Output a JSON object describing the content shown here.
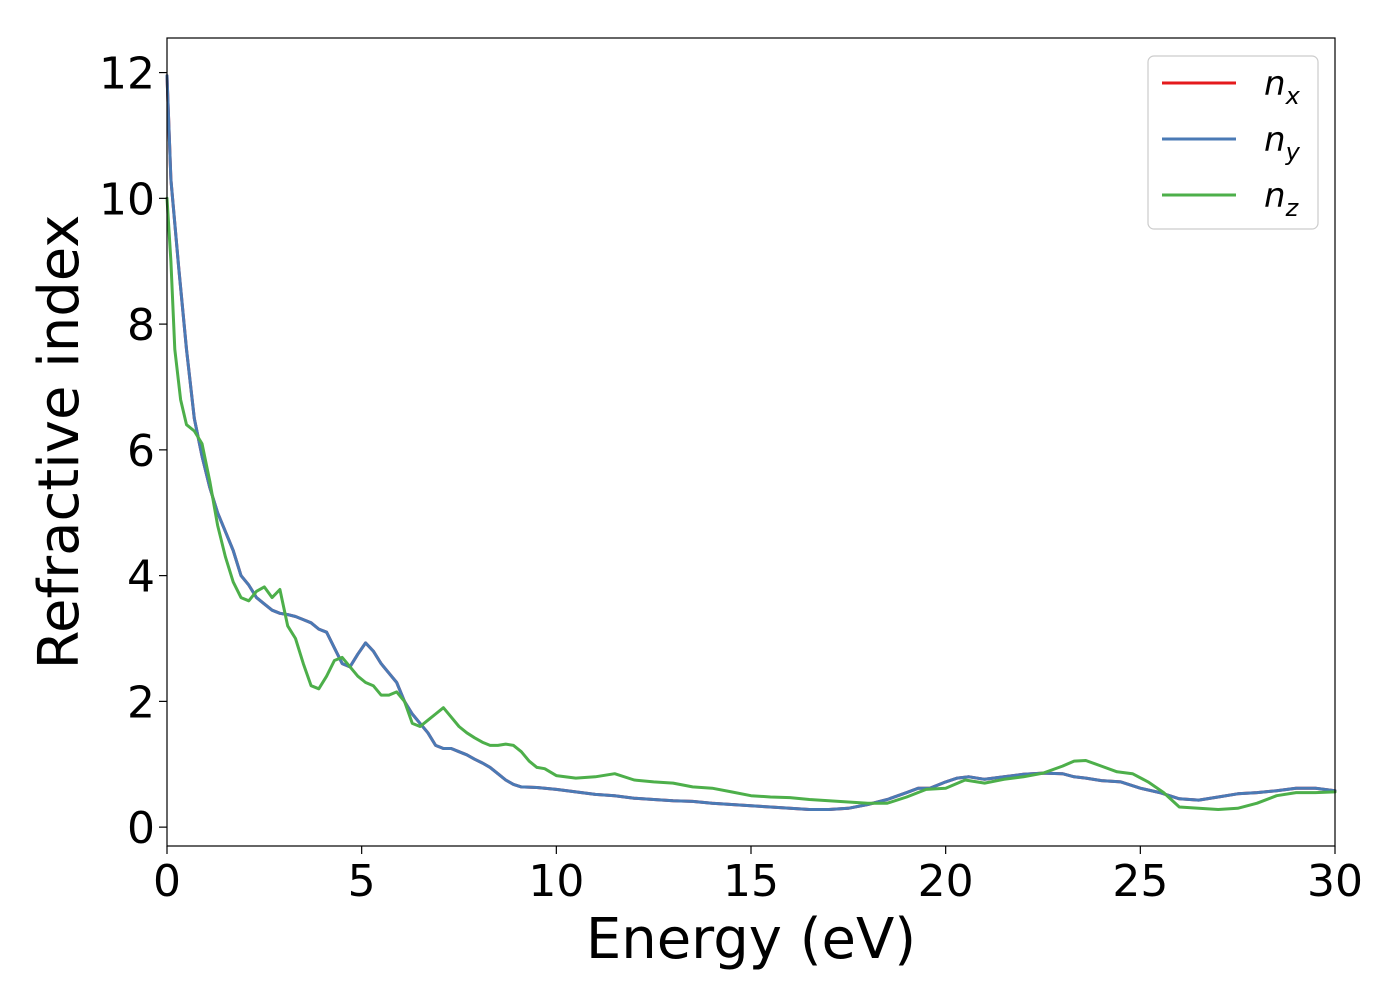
{
  "chart_data": {
    "type": "line",
    "title": "",
    "xlabel": "Energy (eV)",
    "ylabel": "Refractive index",
    "xlim": [
      0,
      30
    ],
    "ylim": [
      -0.3,
      12.55
    ],
    "xticks": [
      0,
      5,
      10,
      15,
      20,
      25,
      30
    ],
    "xtick_labels": [
      "0",
      "5",
      "10",
      "15",
      "20",
      "25",
      "30"
    ],
    "yticks": [
      0,
      2,
      4,
      6,
      8,
      10,
      12
    ],
    "ytick_labels": [
      "0",
      "2",
      "4",
      "6",
      "8",
      "10",
      "12"
    ],
    "grid": false,
    "legend_position": "top-right",
    "series": [
      {
        "name": "n",
        "subscript": "x",
        "color": "#e41a1c",
        "x": [
          0,
          0.1,
          0.3,
          0.5,
          0.7,
          0.9,
          1.1,
          1.3,
          1.5,
          1.7,
          1.9,
          2.1,
          2.3,
          2.5,
          2.7,
          2.9,
          3.1,
          3.3,
          3.5,
          3.7,
          3.9,
          4.1,
          4.3,
          4.5,
          4.7,
          4.9,
          5.1,
          5.3,
          5.5,
          5.7,
          5.9,
          6.1,
          6.3,
          6.5,
          6.7,
          6.9,
          7.1,
          7.3,
          7.5,
          7.7,
          7.9,
          8.1,
          8.3,
          8.5,
          8.7,
          8.9,
          9.1,
          9.5,
          10.0,
          10.5,
          11.0,
          11.5,
          12.0,
          12.5,
          13.0,
          13.5,
          14.0,
          14.5,
          15.0,
          15.5,
          16.0,
          16.5,
          17.0,
          17.5,
          18.0,
          18.5,
          19.0,
          19.3,
          19.6,
          20.0,
          20.3,
          20.6,
          21.0,
          21.5,
          22.0,
          22.5,
          23.0,
          23.3,
          23.6,
          24.0,
          24.5,
          25.0,
          25.5,
          26.0,
          26.5,
          27.0,
          27.5,
          28.0,
          28.5,
          29.0,
          29.5,
          30.0
        ],
        "y": [
          11.95,
          10.3,
          8.9,
          7.6,
          6.5,
          5.9,
          5.4,
          5.0,
          4.7,
          4.4,
          4.0,
          3.85,
          3.65,
          3.55,
          3.45,
          3.4,
          3.38,
          3.35,
          3.3,
          3.25,
          3.15,
          3.1,
          2.85,
          2.6,
          2.55,
          2.75,
          2.93,
          2.8,
          2.6,
          2.45,
          2.3,
          2.0,
          1.8,
          1.65,
          1.5,
          1.3,
          1.25,
          1.25,
          1.2,
          1.15,
          1.08,
          1.02,
          0.95,
          0.85,
          0.75,
          0.68,
          0.64,
          0.63,
          0.6,
          0.56,
          0.52,
          0.5,
          0.46,
          0.44,
          0.42,
          0.41,
          0.38,
          0.36,
          0.34,
          0.32,
          0.3,
          0.28,
          0.28,
          0.3,
          0.36,
          0.44,
          0.55,
          0.62,
          0.62,
          0.72,
          0.78,
          0.8,
          0.76,
          0.8,
          0.84,
          0.86,
          0.85,
          0.8,
          0.78,
          0.74,
          0.72,
          0.62,
          0.55,
          0.45,
          0.43,
          0.48,
          0.53,
          0.55,
          0.58,
          0.62,
          0.62,
          0.58
        ]
      },
      {
        "name": "n",
        "subscript": "y",
        "color": "#4a7ab5",
        "x": [
          0,
          0.1,
          0.3,
          0.5,
          0.7,
          0.9,
          1.1,
          1.3,
          1.5,
          1.7,
          1.9,
          2.1,
          2.3,
          2.5,
          2.7,
          2.9,
          3.1,
          3.3,
          3.5,
          3.7,
          3.9,
          4.1,
          4.3,
          4.5,
          4.7,
          4.9,
          5.1,
          5.3,
          5.5,
          5.7,
          5.9,
          6.1,
          6.3,
          6.5,
          6.7,
          6.9,
          7.1,
          7.3,
          7.5,
          7.7,
          7.9,
          8.1,
          8.3,
          8.5,
          8.7,
          8.9,
          9.1,
          9.5,
          10.0,
          10.5,
          11.0,
          11.5,
          12.0,
          12.5,
          13.0,
          13.5,
          14.0,
          14.5,
          15.0,
          15.5,
          16.0,
          16.5,
          17.0,
          17.5,
          18.0,
          18.5,
          19.0,
          19.3,
          19.6,
          20.0,
          20.3,
          20.6,
          21.0,
          21.5,
          22.0,
          22.5,
          23.0,
          23.3,
          23.6,
          24.0,
          24.5,
          25.0,
          25.5,
          26.0,
          26.5,
          27.0,
          27.5,
          28.0,
          28.5,
          29.0,
          29.5,
          30.0
        ],
        "y": [
          11.95,
          10.3,
          8.9,
          7.6,
          6.5,
          5.9,
          5.4,
          5.0,
          4.7,
          4.4,
          4.0,
          3.85,
          3.65,
          3.55,
          3.45,
          3.4,
          3.38,
          3.35,
          3.3,
          3.25,
          3.15,
          3.1,
          2.85,
          2.6,
          2.55,
          2.75,
          2.93,
          2.8,
          2.6,
          2.45,
          2.3,
          2.0,
          1.8,
          1.65,
          1.5,
          1.3,
          1.25,
          1.25,
          1.2,
          1.15,
          1.08,
          1.02,
          0.95,
          0.85,
          0.75,
          0.68,
          0.64,
          0.63,
          0.6,
          0.56,
          0.52,
          0.5,
          0.46,
          0.44,
          0.42,
          0.41,
          0.38,
          0.36,
          0.34,
          0.32,
          0.3,
          0.28,
          0.28,
          0.3,
          0.36,
          0.44,
          0.55,
          0.62,
          0.62,
          0.72,
          0.78,
          0.8,
          0.76,
          0.8,
          0.84,
          0.86,
          0.85,
          0.8,
          0.78,
          0.74,
          0.72,
          0.62,
          0.55,
          0.45,
          0.43,
          0.48,
          0.53,
          0.55,
          0.58,
          0.62,
          0.62,
          0.58
        ]
      },
      {
        "name": "n",
        "subscript": "z",
        "color": "#4daf4a",
        "x": [
          0,
          0.1,
          0.2,
          0.35,
          0.5,
          0.7,
          0.9,
          1.1,
          1.3,
          1.5,
          1.7,
          1.9,
          2.1,
          2.3,
          2.5,
          2.7,
          2.9,
          3.1,
          3.3,
          3.5,
          3.7,
          3.9,
          4.1,
          4.3,
          4.5,
          4.7,
          4.9,
          5.1,
          5.3,
          5.5,
          5.7,
          5.9,
          6.1,
          6.3,
          6.5,
          6.7,
          6.9,
          7.1,
          7.3,
          7.5,
          7.7,
          7.9,
          8.1,
          8.3,
          8.5,
          8.7,
          8.9,
          9.1,
          9.3,
          9.5,
          9.7,
          10.0,
          10.5,
          11.0,
          11.5,
          12.0,
          12.5,
          13.0,
          13.5,
          14.0,
          14.5,
          15.0,
          15.5,
          16.0,
          16.5,
          17.0,
          17.5,
          18.0,
          18.5,
          19.0,
          19.5,
          20.0,
          20.5,
          21.0,
          21.5,
          22.0,
          22.5,
          23.0,
          23.3,
          23.6,
          24.0,
          24.4,
          24.8,
          25.2,
          25.6,
          26.0,
          26.5,
          27.0,
          27.5,
          28.0,
          28.5,
          29.0,
          29.5,
          30.0
        ],
        "y": [
          10.0,
          9.0,
          7.6,
          6.8,
          6.4,
          6.3,
          6.1,
          5.5,
          4.8,
          4.3,
          3.9,
          3.65,
          3.6,
          3.75,
          3.82,
          3.65,
          3.78,
          3.2,
          3.0,
          2.6,
          2.25,
          2.2,
          2.4,
          2.65,
          2.7,
          2.55,
          2.4,
          2.3,
          2.25,
          2.1,
          2.1,
          2.15,
          2.0,
          1.65,
          1.6,
          1.7,
          1.8,
          1.9,
          1.75,
          1.6,
          1.5,
          1.42,
          1.35,
          1.3,
          1.3,
          1.32,
          1.3,
          1.2,
          1.05,
          0.95,
          0.93,
          0.82,
          0.78,
          0.8,
          0.85,
          0.75,
          0.72,
          0.7,
          0.64,
          0.62,
          0.56,
          0.5,
          0.48,
          0.47,
          0.44,
          0.42,
          0.4,
          0.38,
          0.38,
          0.48,
          0.6,
          0.62,
          0.75,
          0.7,
          0.76,
          0.8,
          0.86,
          0.97,
          1.05,
          1.06,
          0.97,
          0.88,
          0.85,
          0.72,
          0.55,
          0.32,
          0.3,
          0.28,
          0.3,
          0.38,
          0.5,
          0.55,
          0.55,
          0.56
        ]
      }
    ]
  }
}
